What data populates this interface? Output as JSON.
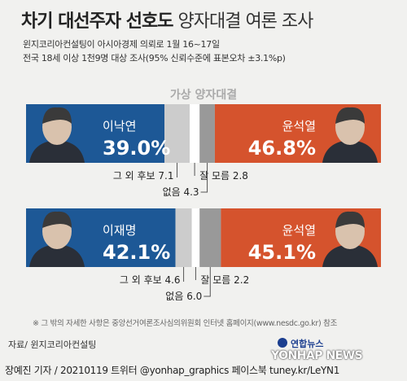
{
  "title_bold": "차기 대선주자 선호도",
  "title_light": "양자대결 여론 조사",
  "subtitle_1": "윈지코리아컨설팅이 아시아경제 의뢰로 1월 16~17일",
  "subtitle_2": "전국 18세 이상 1천9명 대상 조사(95% 신뢰수준에 표본오차 ±3.1%p)",
  "section_header": "가상 양자대결",
  "chart_data": {
    "type": "bar",
    "stacked": true,
    "orientation": "horizontal",
    "title": "가상 양자대결",
    "colors": {
      "left": "#1d5896",
      "other": "#cccccc",
      "dontknow": "#ffffff",
      "none": "#999999",
      "right": "#d5532d"
    },
    "matchups": [
      {
        "left_name": "이낙연",
        "left_value": 39.0,
        "left_label": "39.0%",
        "other_label": "그 외 후보",
        "other_value": 7.1,
        "dontknow_label": "잘 모름",
        "dontknow_value": 2.8,
        "none_label": "없음",
        "none_value": 4.3,
        "right_name": "윤석열",
        "right_value": 46.8,
        "right_label": "46.8%"
      },
      {
        "left_name": "이재명",
        "left_value": 42.1,
        "left_label": "42.1%",
        "other_label": "그 외 후보",
        "other_value": 4.6,
        "dontknow_label": "잘 모름",
        "dontknow_value": 2.2,
        "none_label": "없음",
        "none_value": 6.0,
        "right_name": "윤석열",
        "right_value": 45.1,
        "right_label": "45.1%"
      }
    ]
  },
  "footnote": "※ 그 밖의 자세한 사항은 중앙선거여론조사심의위원회 인터넷 홈페이지(www.nesdc.go.kr) 참조",
  "source": "자료/ 윈지코리아컨설팅",
  "credit": "장예진 기자 / 20210119 트위터 @yonhap_graphics  페이스북 tuney.kr/LeYN1",
  "logo_kr": "연합뉴스",
  "logo_en": "YONHAP NEWS"
}
